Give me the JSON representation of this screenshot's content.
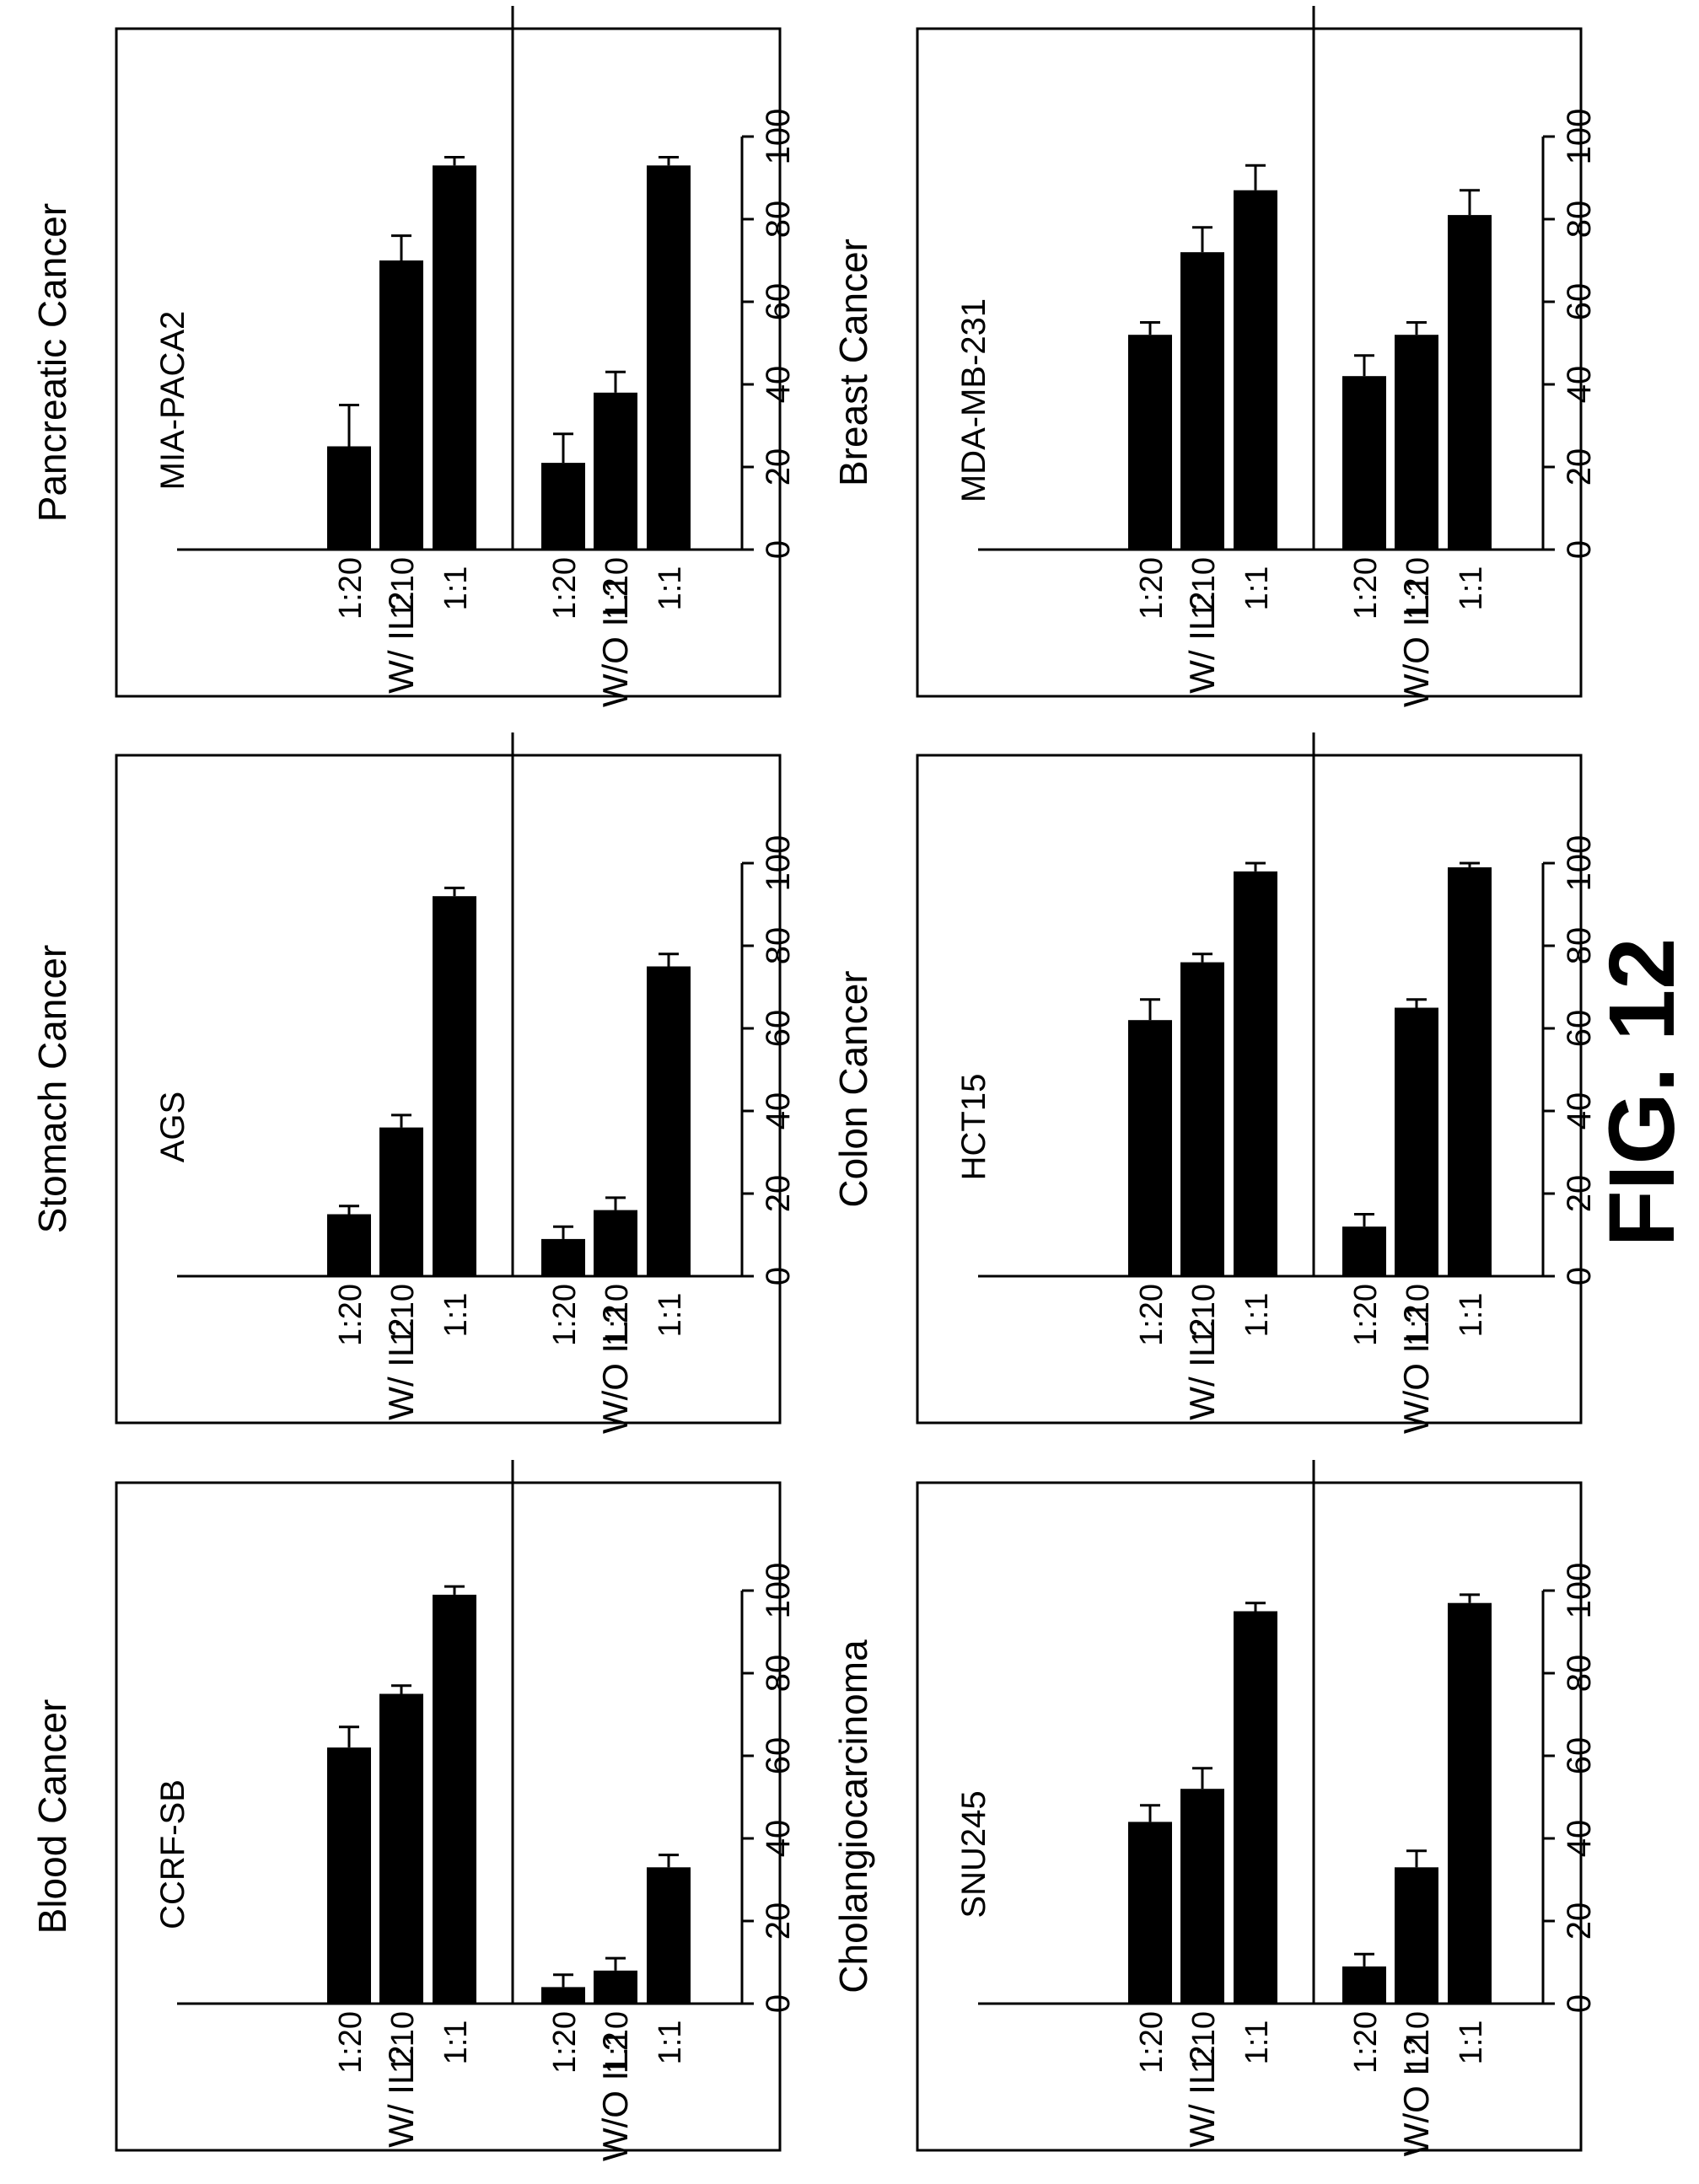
{
  "figure_label": "FIG. 12",
  "chart_data": [
    {
      "type": "bar",
      "title": "Blood Cancer",
      "cell_line": "CCRF-SB",
      "ylim": [
        0,
        100
      ],
      "yticks": [
        "100",
        "80",
        "60",
        "40",
        "20",
        "0"
      ],
      "categories": [
        "1:1",
        "1:10",
        "1:20",
        "1:1",
        "1:10",
        "1:20"
      ],
      "groups": [
        "W/O IL2",
        "W/ IL2"
      ],
      "values": [
        33,
        8,
        4,
        99,
        75,
        62
      ],
      "errors": [
        3,
        3,
        3,
        2,
        2,
        5
      ],
      "grid": false
    },
    {
      "type": "bar",
      "title": "Stomach Cancer",
      "cell_line": "AGS",
      "ylim": [
        0,
        100
      ],
      "yticks": [
        "100",
        "80",
        "60",
        "40",
        "20",
        "0"
      ],
      "categories": [
        "1:1",
        "1:10",
        "1:20",
        "1:1",
        "1:10",
        "1:20"
      ],
      "groups": [
        "W/O IL2",
        "W/ IL2"
      ],
      "values": [
        75,
        16,
        9,
        92,
        36,
        15
      ],
      "errors": [
        3,
        3,
        3,
        2,
        3,
        2
      ],
      "grid": false
    },
    {
      "type": "bar",
      "title": "Pancreatic Cancer",
      "cell_line": "MIA-PACA2",
      "ylim": [
        0,
        100
      ],
      "yticks": [
        "100",
        "80",
        "60",
        "40",
        "20",
        "0"
      ],
      "categories": [
        "1:1",
        "1:10",
        "1:20",
        "1:1",
        "1:10",
        "1:20"
      ],
      "groups": [
        "W/O IL2",
        "W/ IL2"
      ],
      "values": [
        93,
        38,
        21,
        93,
        70,
        25
      ],
      "errors": [
        2,
        5,
        7,
        2,
        6,
        10
      ],
      "grid": false
    },
    {
      "type": "bar",
      "title": "Cholangiocarcinoma",
      "cell_line": "SNU245",
      "ylim": [
        0,
        100
      ],
      "yticks": [
        "100",
        "80",
        "60",
        "40",
        "20",
        "0"
      ],
      "categories": [
        "1:1",
        "1:10",
        "1:20",
        "1:1",
        "1:10",
        "1:20"
      ],
      "groups": [
        "W/O L2",
        "W/ IL2"
      ],
      "values": [
        97,
        33,
        9,
        95,
        52,
        44
      ],
      "errors": [
        2,
        4,
        3,
        2,
        5,
        4
      ],
      "grid": false
    },
    {
      "type": "bar",
      "title": "Colon Cancer",
      "cell_line": "HCT15",
      "ylim": [
        0,
        100
      ],
      "yticks": [
        "100",
        "80",
        "60",
        "40",
        "20",
        "0"
      ],
      "categories": [
        "1:1",
        "1:10",
        "1:20",
        "1:1",
        "1:10",
        "1:20"
      ],
      "groups": [
        "W/O IL2",
        "W/ IL2"
      ],
      "values": [
        99,
        65,
        12,
        98,
        76,
        62
      ],
      "errors": [
        1,
        2,
        3,
        2,
        2,
        5
      ],
      "grid": false
    },
    {
      "type": "bar",
      "title": "Breast Cancer",
      "cell_line": "MDA-MB-231",
      "ylim": [
        0,
        100
      ],
      "yticks": [
        "100",
        "80",
        "60",
        "40",
        "20",
        "0"
      ],
      "categories": [
        "1:1",
        "1:10",
        "1:20",
        "1:1",
        "1:10",
        "1:20"
      ],
      "groups": [
        "W/O IL2",
        "W/ IL2"
      ],
      "values": [
        81,
        52,
        42,
        87,
        72,
        52
      ],
      "errors": [
        6,
        3,
        5,
        6,
        6,
        3
      ],
      "grid": false
    }
  ]
}
